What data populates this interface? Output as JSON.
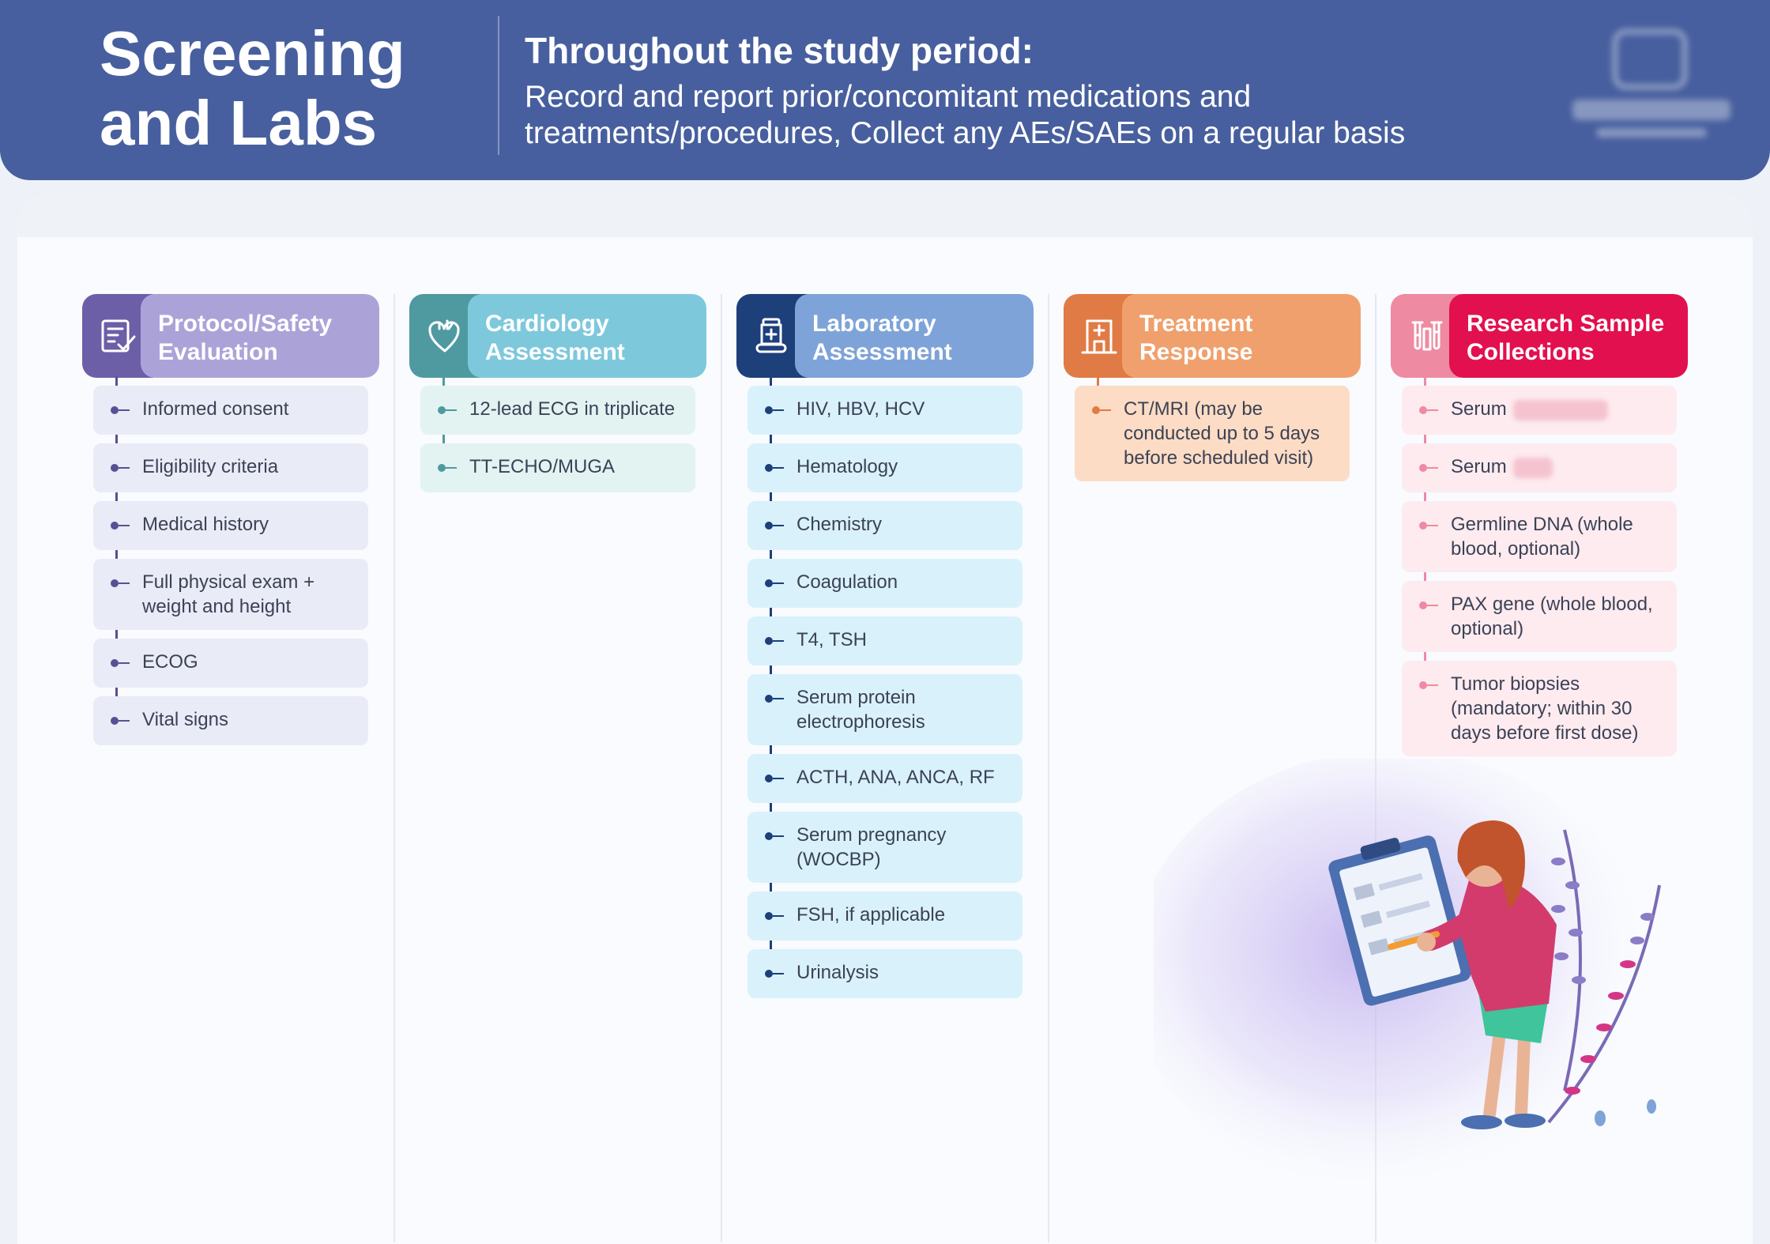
{
  "header": {
    "title": "Screening and Labs",
    "subtitle": "Throughout the study period:",
    "description": "Record and report prior/concomitant medications and treatments/procedures, Collect any AEs/SAEs on a regular basis"
  },
  "columns": [
    {
      "id": "protocol",
      "title": "Protocol/Safety Evaluation",
      "icon": "checklist-icon",
      "colors": {
        "icon_bg": "#6c5fa7",
        "head_bg": "#ab a3d8",
        "item_bg": "#e9ebf6",
        "accent": "#5a4f94"
      },
      "items": [
        "Informed consent",
        "Eligibility criteria",
        "Medical history",
        "Full physical exam + weight and height",
        "ECOG",
        "Vital signs"
      ]
    },
    {
      "id": "cardiology",
      "title": "Cardiology Assessment",
      "icon": "heart-icon",
      "colors": {
        "icon_bg": "#4f9aa0",
        "head_bg": "#7ec8dc",
        "item_bg": "#e2f3f2",
        "accent": "#4f9aa0"
      },
      "items": [
        "12-lead ECG in triplicate",
        "TT-ECHO/MUGA"
      ]
    },
    {
      "id": "laboratory",
      "title": "Laboratory Assessment",
      "icon": "medicine-bottle-icon",
      "colors": {
        "icon_bg": "#1d3f7a",
        "head_bg": "#7ea3d8",
        "item_bg": "#d9f1fb",
        "accent": "#1d3f7a"
      },
      "items": [
        "HIV, HBV, HCV",
        "Hematology",
        "Chemistry",
        "Coagulation",
        "T4, TSH",
        "Serum protein electrophoresis",
        "ACTH, ANA, ANCA, RF",
        "Serum pregnancy (WOCBP)",
        "FSH, if applicable",
        "Urinalysis"
      ]
    },
    {
      "id": "treatment",
      "title": "Treatment Response",
      "icon": "hospital-icon",
      "colors": {
        "icon_bg": "#e07b46",
        "head_bg": "#f0a06c",
        "item_bg": "#fcdcc4",
        "accent": "#e07b46"
      },
      "items": [
        "CT/MRI (may be conducted up to 5 days before scheduled visit)"
      ]
    },
    {
      "id": "research",
      "title": "Research Sample Collections",
      "icon": "test-tubes-icon",
      "colors": {
        "icon_bg": "#ee8aa2",
        "head_bg": "#e2104e",
        "item_bg": "#fdebef",
        "accent": "#ee8aa2"
      },
      "items": [
        "Serum",
        "Serum",
        "Germline DNA (whole blood, optional)",
        "PAX gene (whole blood, optional)",
        "Tumor biopsies (mandatory; within 30 days before first dose)"
      ]
    }
  ]
}
